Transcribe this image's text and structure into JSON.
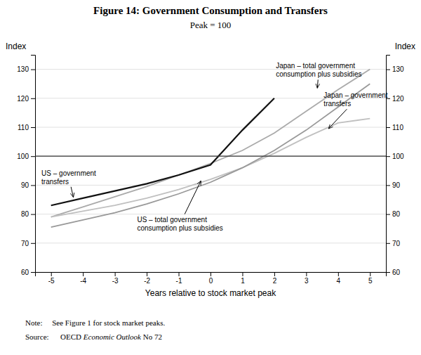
{
  "chart_data": {
    "type": "line",
    "title": "Figure 14: Government Consumption and Transfers",
    "subtitle": "Peak = 100",
    "x_label": "Years relative to stock market peak",
    "y_label": "Index",
    "y2_label": "Index",
    "x": [
      -5,
      -4,
      -3,
      -2,
      -1,
      0,
      1,
      2,
      3,
      4,
      5
    ],
    "xlim": [
      -5.5,
      5.5
    ],
    "xticks": [
      -5,
      -4,
      -3,
      -2,
      -1,
      0,
      1,
      2,
      3,
      4,
      5
    ],
    "ylim": [
      60,
      135
    ],
    "yticks": [
      60,
      70,
      80,
      90,
      100,
      110,
      120,
      130
    ],
    "y2lim": [
      60,
      135
    ],
    "y2ticks": [
      60,
      70,
      80,
      90,
      100,
      110,
      120,
      130
    ],
    "grid": true,
    "series": [
      {
        "color": "#aaaaaa",
        "values": [
          79,
          82.5,
          86,
          89.5,
          93.5,
          97.5,
          102,
          108,
          115.5,
          123,
          130
        ]
      },
      {
        "color": "#c0c0c0",
        "values": [
          79,
          81,
          83,
          85.5,
          88.5,
          92,
          96,
          101,
          106.5,
          111.5,
          113
        ]
      },
      {
        "color": "#999999",
        "values": [
          75.5,
          78,
          80.5,
          83.5,
          87,
          91,
          96,
          102,
          109,
          117,
          125
        ]
      },
      {
        "color": "#111111",
        "values": [
          83,
          85.5,
          88,
          90.5,
          93.5,
          97,
          109,
          120,
          null,
          null,
          null
        ]
      }
    ],
    "hline": {
      "y": 100,
      "color": "#333333"
    },
    "annotations": [
      {
        "text": "US – government\ntransfers",
        "x": -4.3,
        "y": 85.8,
        "text_x": -5.3,
        "text_y": 95.5
      },
      {
        "text": "US – total government\nconsumption plus subsidies",
        "x": -0.3,
        "y": 91.5,
        "text_x": -2.3,
        "text_y": 79.5
      },
      {
        "text": "Japan – total government\nconsumption plus subsidies",
        "x": 3.35,
        "y": 123.5,
        "text_x": 2.05,
        "text_y": 132.5
      },
      {
        "text": "Japan – government\ntransfers",
        "x": 3.7,
        "y": 109.5,
        "text_x": 3.55,
        "text_y": 116.5
      }
    ],
    "note": "Note:   See Figure 1 for stock market peaks.",
    "source": [
      "Source:   OECD ",
      "Economic Outlook",
      " No 72"
    ]
  }
}
